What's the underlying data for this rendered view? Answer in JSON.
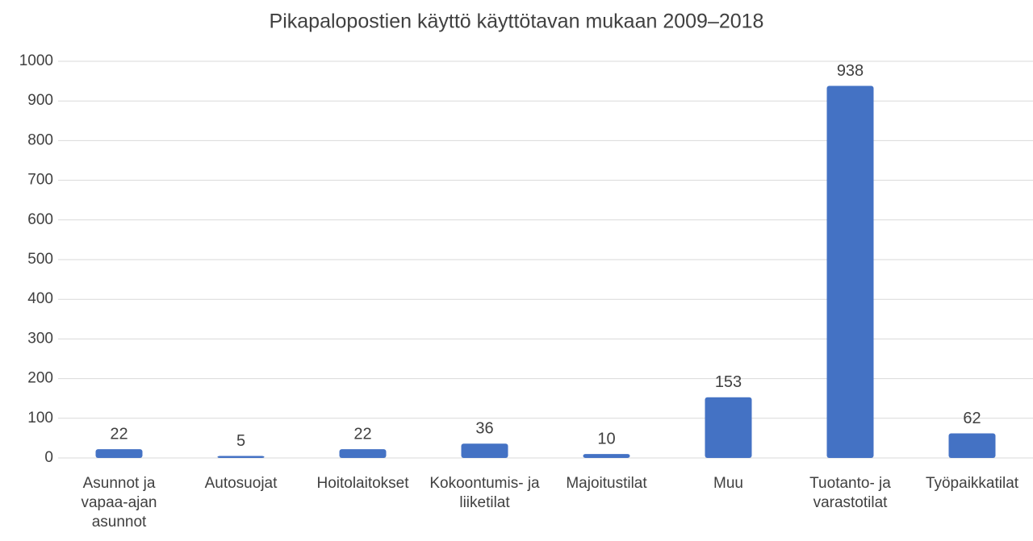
{
  "chart_data": {
    "type": "bar",
    "title": "Pikapalopostien  käyttö käyttötavan mukaan 2009–2018",
    "categories": [
      "Asunnot ja vapaa-ajan asunnot",
      "Autosuojat",
      "Hoitolaitokset",
      "Kokoontumis- ja liiketilat",
      "Majoitustilat",
      "Muu",
      "Tuotanto- ja varastotilat",
      "Työpaikkatilat"
    ],
    "values": [
      22,
      5,
      22,
      36,
      10,
      153,
      938,
      62
    ],
    "color": "#4472c4",
    "ylim": [
      0,
      1000
    ],
    "yticks": [
      0,
      100,
      200,
      300,
      400,
      500,
      600,
      700,
      800,
      900,
      1000
    ],
    "grid": true
  }
}
